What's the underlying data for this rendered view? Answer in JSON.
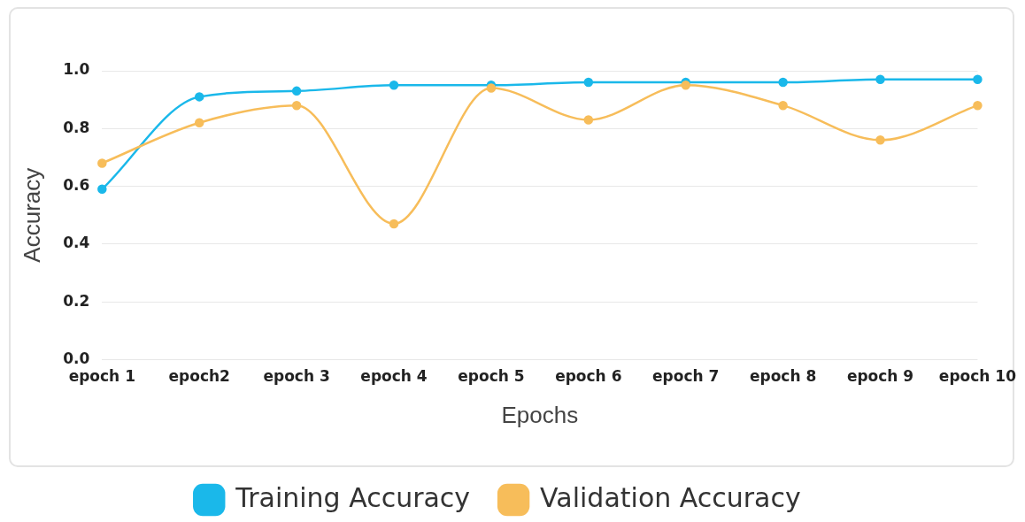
{
  "chart_data": {
    "type": "line",
    "xlabel": "Epochs",
    "ylabel": "Accuracy",
    "categories": [
      "epoch 1",
      "epoch2",
      "epoch 3",
      "epoch 4",
      "epoch 5",
      "epoch 6",
      "epoch 7",
      "epoch 8",
      "epoch 9",
      "epoch 10"
    ],
    "series": [
      {
        "name": "Training Accuracy",
        "color": "#1ab8ea",
        "values": [
          0.59,
          0.91,
          0.93,
          0.95,
          0.95,
          0.96,
          0.96,
          0.96,
          0.97,
          0.97
        ]
      },
      {
        "name": "Validation Accuracy",
        "color": "#f7bd5a",
        "values": [
          0.68,
          0.82,
          0.88,
          0.47,
          0.94,
          0.83,
          0.95,
          0.88,
          0.76,
          0.88
        ]
      }
    ],
    "ylim": [
      0,
      1.0
    ],
    "yticks": [
      {
        "value": 0,
        "label": "0.0"
      },
      {
        "value": 0.2,
        "label": "0.2"
      },
      {
        "value": 0.4,
        "label": "0.4"
      },
      {
        "value": 0.6,
        "label": "0.6"
      },
      {
        "value": 0.8,
        "label": "0.8"
      },
      {
        "value": 1.0,
        "label": "1.0"
      }
    ],
    "grid": "y",
    "legend": "bottom",
    "marker": "circle",
    "line_style": "solid"
  }
}
